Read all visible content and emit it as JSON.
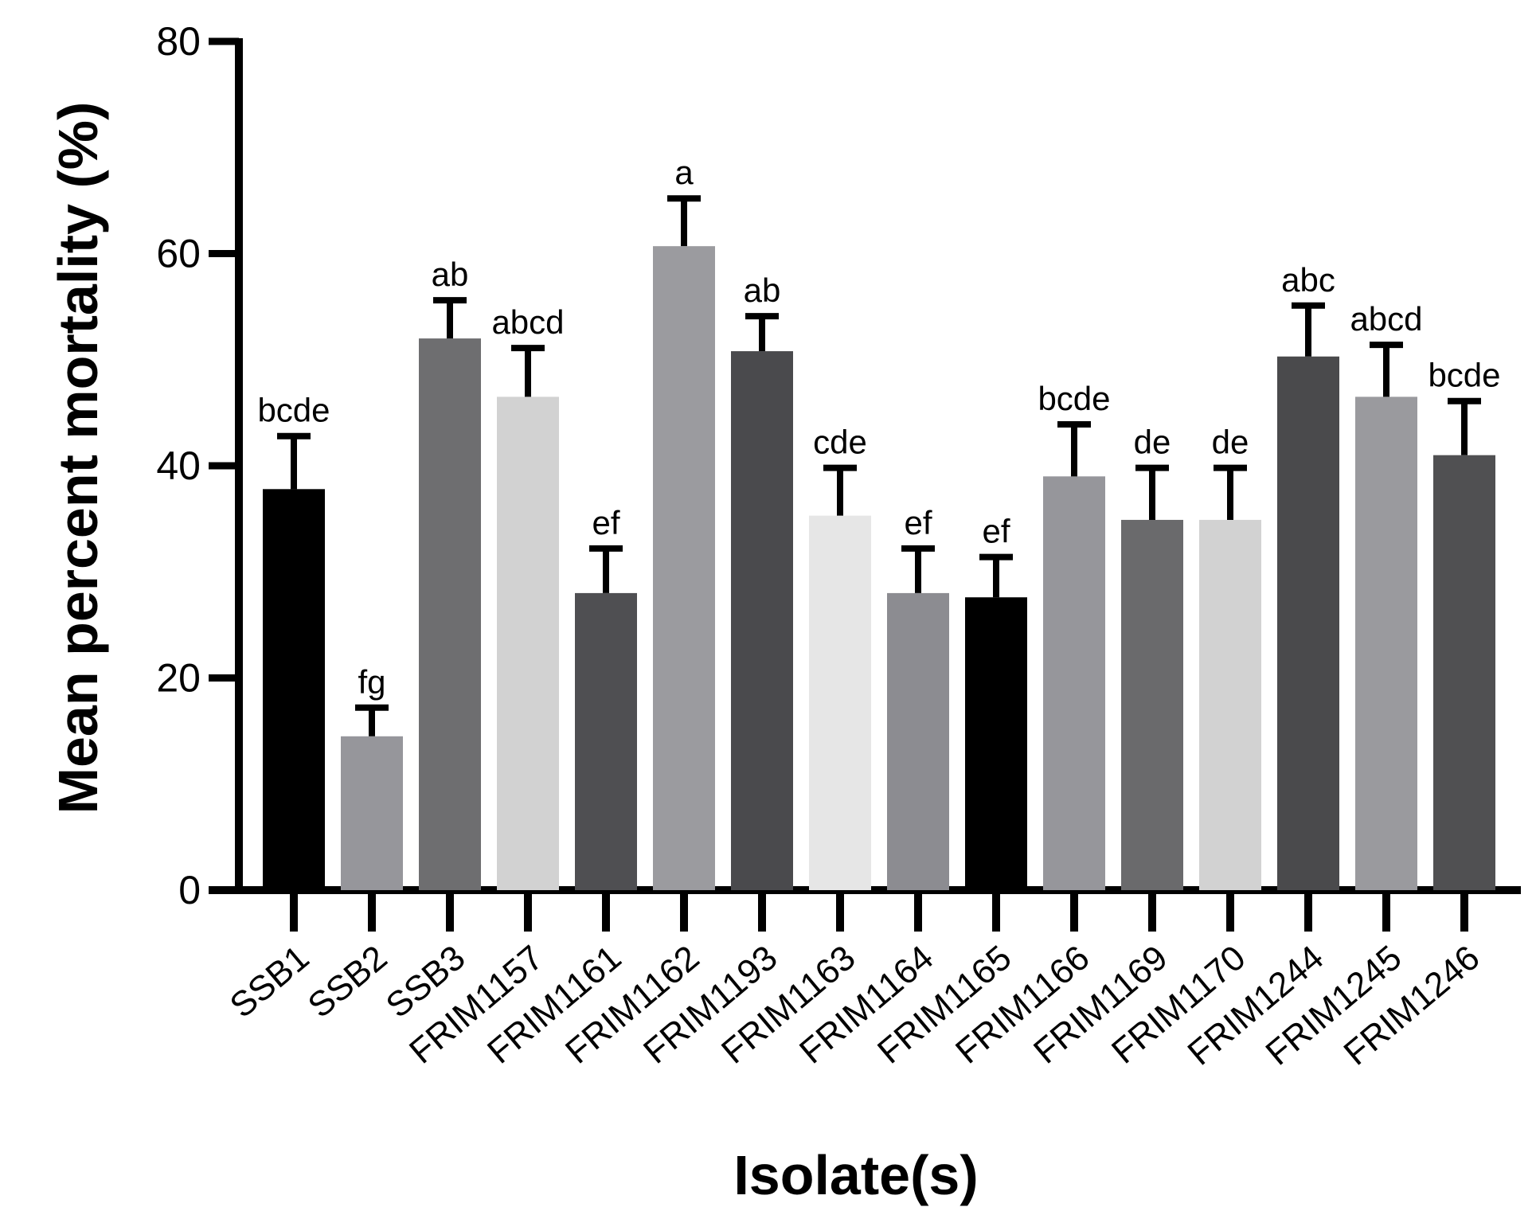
{
  "chart_data": {
    "type": "bar",
    "title": "",
    "xlabel": "Isolate(s)",
    "ylabel": "Mean percent mortality (%)",
    "ylim": [
      0,
      80
    ],
    "yticks": [
      0,
      20,
      40,
      60,
      80
    ],
    "grid": false,
    "categories": [
      "SSB1",
      "SSB2",
      "SSB3",
      "FRIM1157",
      "FRIM1161",
      "FRIM1162",
      "FRIM1193",
      "FRIM1163",
      "FRIM1164",
      "FRIM1165",
      "FRIM1166",
      "FRIM1169",
      "FRIM1170",
      "FRIM1244",
      "FRIM1245",
      "FRIM1246"
    ],
    "values": [
      37.8,
      14.5,
      52.0,
      46.5,
      28.0,
      60.7,
      50.8,
      35.3,
      28.0,
      27.6,
      39.0,
      34.9,
      34.9,
      50.3,
      46.5,
      41.0
    ],
    "errors": [
      5.0,
      2.7,
      3.6,
      4.6,
      4.2,
      4.5,
      3.3,
      4.5,
      4.2,
      3.8,
      4.9,
      4.9,
      4.9,
      4.8,
      4.9,
      5.1
    ],
    "significance": [
      "bcde",
      "fg",
      "ab",
      "abcd",
      "ef",
      "a",
      "ab",
      "cde",
      "ef",
      "ef",
      "bcde",
      "de",
      "de",
      "abc",
      "abcd",
      "bcde"
    ],
    "colors": [
      "#000000",
      "#96969b",
      "#6e6e70",
      "#d2d2d2",
      "#4f4f52",
      "#9b9b9f",
      "#4a4a4d",
      "#e6e6e6",
      "#8c8c91",
      "#000000",
      "#96969b",
      "#6a6a6c",
      "#d2d2d2",
      "#4a4a4c",
      "#9a9a9e",
      "#505052"
    ]
  }
}
